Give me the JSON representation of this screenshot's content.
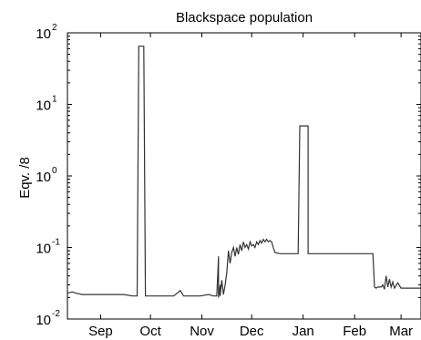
{
  "chart_data": {
    "type": "line",
    "title": "Blackspace population",
    "xlabel": "",
    "ylabel": "Eqv. /8",
    "yscale": "log",
    "ylim": [
      0.01,
      100
    ],
    "yticks": [
      {
        "value": 0.01,
        "base": "10",
        "exp": "-2"
      },
      {
        "value": 0.1,
        "base": "10",
        "exp": "-1"
      },
      {
        "value": 1,
        "base": "10",
        "exp": "0"
      },
      {
        "value": 10,
        "base": "10",
        "exp": "1"
      },
      {
        "value": 100,
        "base": "10",
        "exp": "2"
      }
    ],
    "xlim": [
      "Aug 27",
      "Mar 28"
    ],
    "xticks": [
      {
        "label": "Sep",
        "date": "Sep 16"
      },
      {
        "label": "Oct",
        "date": "Oct 16"
      },
      {
        "label": "Nov",
        "date": "Nov 16"
      },
      {
        "label": "Dec",
        "date": "Dec 16"
      },
      {
        "label": "Jan",
        "date": "Jan 16"
      },
      {
        "label": "Feb",
        "date": "Feb 16"
      },
      {
        "label": "Mar",
        "date": "Mar 16"
      }
    ],
    "grid": false,
    "line_color": "#333333",
    "series": [
      {
        "x": [
          "Aug 27",
          "Aug 30",
          "Sep 1",
          "Sep 5",
          "Sep 10",
          "Sep 15",
          "Sep 20",
          "Sep 25",
          "Sep 30",
          "Oct 5",
          "Oct 8",
          "Oct 9",
          "Oct 12",
          "Oct 13",
          "Oct 14",
          "Oct 20",
          "Oct 25",
          "Oct 30",
          "Nov 3",
          "Nov 5",
          "Nov 10",
          "Nov 15",
          "Nov 20",
          "Nov 23",
          "Nov 25",
          "Nov 26",
          "Nov 26",
          "Nov 27",
          "Nov 27",
          "Nov 28",
          "Nov 29",
          "Nov 30",
          "Dec 1",
          "Dec 2",
          "Dec 3",
          "Dec 4",
          "Dec 5",
          "Dec 6",
          "Dec 7",
          "Dec 8",
          "Dec 9",
          "Dec 10",
          "Dec 11",
          "Dec 12",
          "Dec 13",
          "Dec 14",
          "Dec 15",
          "Dec 16",
          "Dec 17",
          "Dec 18",
          "Dec 19",
          "Dec 20",
          "Dec 21",
          "Dec 22",
          "Dec 23",
          "Dec 24",
          "Dec 25",
          "Dec 26",
          "Dec 27",
          "Dec 28",
          "Dec 29",
          "Dec 30",
          "Jan 2",
          "Jan 5",
          "Jan 10",
          "Jan 13",
          "Jan 14",
          "Jan 15",
          "Jan 17",
          "Jan 19",
          "Jan 19",
          "Jan 20",
          "Jan 25",
          "Jan 30",
          "Feb 5",
          "Feb 10",
          "Feb 13",
          "Feb 14",
          "Feb 15",
          "Feb 17",
          "Feb 20",
          "Feb 25",
          "Feb 27",
          "Feb 28",
          "Mar 1",
          "Mar 2",
          "Mar 3",
          "Mar 4",
          "Mar 5",
          "Mar 6",
          "Mar 7",
          "Mar 8",
          "Mar 9",
          "Mar 10",
          "Mar 11",
          "Mar 12",
          "Mar 14",
          "Mar 16",
          "Mar 20",
          "Mar 24",
          "Mar 28"
        ],
        "y": [
          0.023,
          0.024,
          0.023,
          0.022,
          0.022,
          0.022,
          0.022,
          0.022,
          0.022,
          0.021,
          0.021,
          65,
          65,
          0.021,
          0.021,
          0.021,
          0.021,
          0.021,
          0.025,
          0.021,
          0.021,
          0.021,
          0.022,
          0.021,
          0.021,
          0.075,
          0.02,
          0.03,
          0.021,
          0.035,
          0.022,
          0.03,
          0.045,
          0.09,
          0.06,
          0.085,
          0.1,
          0.075,
          0.1,
          0.08,
          0.11,
          0.09,
          0.12,
          0.1,
          0.11,
          0.095,
          0.12,
          0.105,
          0.11,
          0.1,
          0.12,
          0.11,
          0.125,
          0.115,
          0.13,
          0.12,
          0.13,
          0.12,
          0.125,
          0.12,
          0.1,
          0.085,
          0.082,
          0.082,
          0.082,
          0.082,
          5,
          5,
          5,
          5,
          0.082,
          0.082,
          0.082,
          0.082,
          0.082,
          0.082,
          0.082,
          0.082,
          0.082,
          0.082,
          0.082,
          0.082,
          0.082,
          0.028,
          0.027,
          0.028,
          0.028,
          0.028,
          0.03,
          0.026,
          0.04,
          0.028,
          0.036,
          0.028,
          0.033,
          0.027,
          0.032,
          0.027,
          0.027,
          0.027,
          0.027
        ]
      }
    ]
  }
}
